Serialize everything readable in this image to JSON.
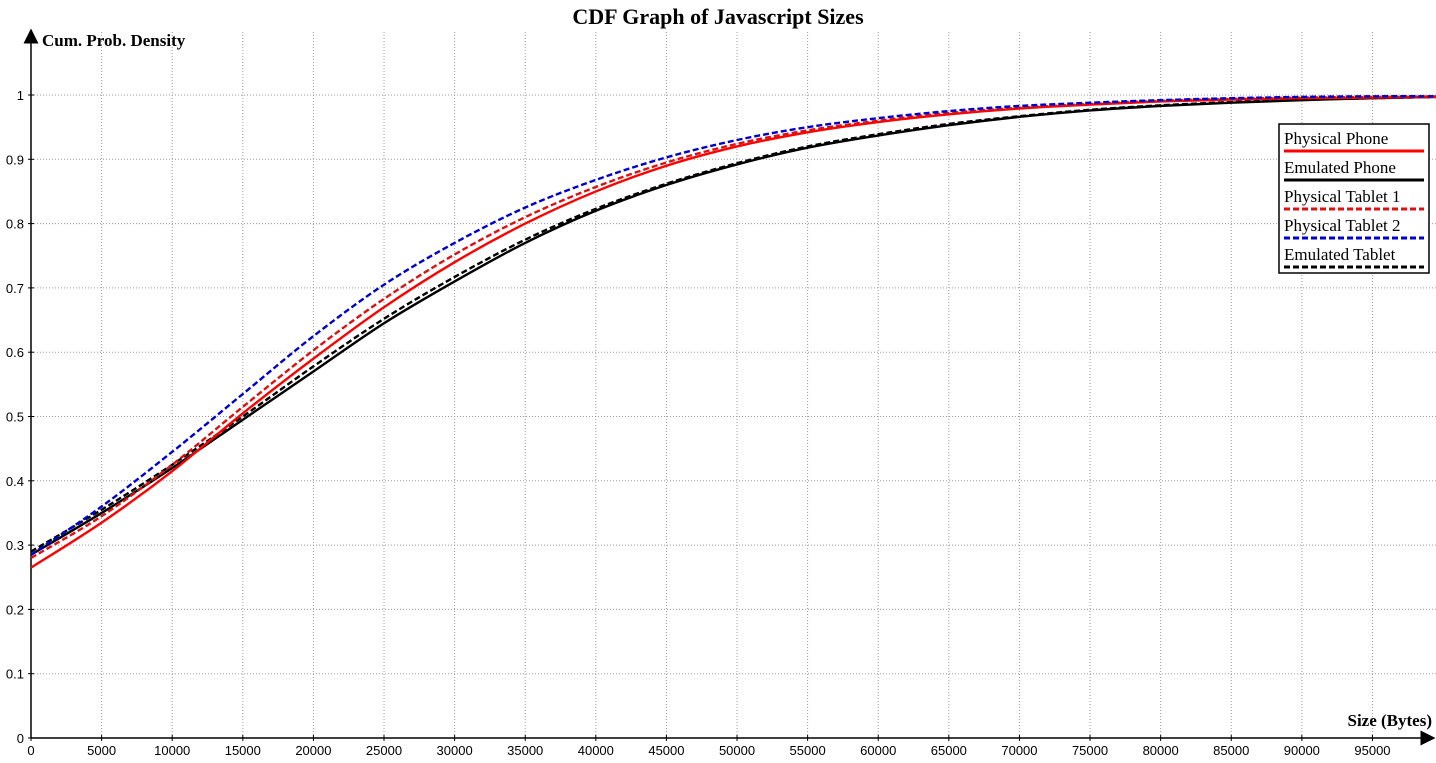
{
  "chart_data": {
    "type": "line",
    "title": "CDF Graph of Javascript Sizes",
    "xlabel": "Size (Bytes)",
    "ylabel": "Cum. Prob. Density",
    "xlim": [
      0,
      99500
    ],
    "ylim": [
      0,
      1.05
    ],
    "x_ticks": [
      0,
      5000,
      10000,
      15000,
      20000,
      25000,
      30000,
      35000,
      40000,
      45000,
      50000,
      55000,
      60000,
      65000,
      70000,
      75000,
      80000,
      85000,
      90000,
      95000
    ],
    "y_ticks": [
      0,
      0.1,
      0.2,
      0.3,
      0.4,
      0.5,
      0.6,
      0.7,
      0.8,
      0.9,
      1
    ],
    "y_tick_labels": [
      "0",
      "0.1",
      "0.2",
      "0.3",
      "0.4",
      "0.5",
      "0.6",
      "0.7",
      "0.8",
      "0.9",
      "1"
    ],
    "grid": true,
    "legend_position": "right",
    "x": [
      0,
      5000,
      10000,
      15000,
      20000,
      25000,
      30000,
      35000,
      40000,
      45000,
      50000,
      55000,
      60000,
      65000,
      70000,
      75000,
      80000,
      85000,
      90000,
      95000,
      99500
    ],
    "series": [
      {
        "name": "Physical Phone",
        "color": "#ff0000",
        "dash": "solid",
        "values": [
          0.265,
          0.335,
          0.415,
          0.505,
          0.59,
          0.67,
          0.74,
          0.8,
          0.85,
          0.89,
          0.92,
          0.942,
          0.958,
          0.97,
          0.979,
          0.985,
          0.99,
          0.993,
          0.995,
          0.996,
          0.997
        ]
      },
      {
        "name": "Emulated Phone",
        "color": "#000000",
        "dash": "solid",
        "values": [
          0.285,
          0.35,
          0.42,
          0.495,
          0.57,
          0.645,
          0.71,
          0.77,
          0.82,
          0.86,
          0.892,
          0.918,
          0.937,
          0.953,
          0.966,
          0.976,
          0.983,
          0.988,
          0.992,
          0.995,
          0.997
        ]
      },
      {
        "name": "Physical Tablet 1",
        "color": "#dd1111",
        "dash": "dashed",
        "values": [
          0.28,
          0.345,
          0.425,
          0.515,
          0.603,
          0.683,
          0.752,
          0.81,
          0.857,
          0.895,
          0.924,
          0.945,
          0.96,
          0.972,
          0.98,
          0.986,
          0.991,
          0.994,
          0.996,
          0.997,
          0.998
        ]
      },
      {
        "name": "Physical Tablet 2",
        "color": "#0000cc",
        "dash": "dashed",
        "values": [
          0.285,
          0.36,
          0.445,
          0.535,
          0.625,
          0.705,
          0.77,
          0.825,
          0.868,
          0.903,
          0.93,
          0.95,
          0.964,
          0.975,
          0.983,
          0.988,
          0.992,
          0.995,
          0.997,
          0.998,
          0.998
        ]
      },
      {
        "name": "Emulated Tablet",
        "color": "#000000",
        "dash": "dashed",
        "values": [
          0.29,
          0.355,
          0.425,
          0.5,
          0.578,
          0.652,
          0.717,
          0.775,
          0.823,
          0.862,
          0.894,
          0.92,
          0.939,
          0.955,
          0.967,
          0.977,
          0.984,
          0.989,
          0.993,
          0.995,
          0.997
        ]
      }
    ]
  }
}
